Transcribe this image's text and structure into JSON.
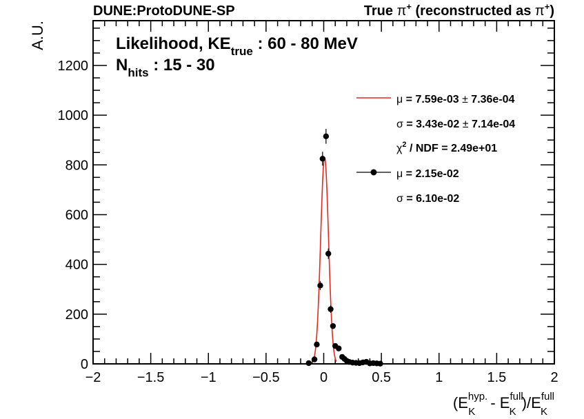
{
  "chart_data": {
    "type": "scatter",
    "header_left": "DUNE:ProtoDUNE-SP",
    "header_right": {
      "prefix": "True ",
      "particle": "π",
      "particle_sup": "+",
      "middle": " (reconstructed as ",
      "particle2": "π",
      "particle2_sup": "+",
      "suffix": ")"
    },
    "ylabel": "A.U.",
    "xlabel": {
      "open": "(E",
      "sup1": "hyp.",
      "sub1": "K",
      "minus": " - E",
      "sup2": "full",
      "sub2": "K",
      "div": ")/E",
      "sup3": "full",
      "sub3": "K"
    },
    "xlim": [
      -2,
      2
    ],
    "ylim": [
      0,
      1380
    ],
    "x_ticks": [
      -2,
      -1.5,
      -1,
      -0.5,
      0,
      0.5,
      1,
      1.5,
      2
    ],
    "x_tick_labels": [
      "−2",
      "−1.5",
      "−1",
      "−0.5",
      "0",
      "0.5",
      "1",
      "1.5",
      "2"
    ],
    "y_ticks": [
      0,
      200,
      400,
      600,
      800,
      1000,
      1200
    ],
    "y_tick_labels": [
      "0",
      "200",
      "400",
      "600",
      "800",
      "1000",
      "1200"
    ],
    "annotation": {
      "line1_a": "Likelihood, KE",
      "line1_sub": "true",
      "line1_b": " : 60 - 80 MeV",
      "line2_a": "N",
      "line2_sub": "hits",
      "line2_b": " : 15 - 30"
    },
    "legend": {
      "fit_mu_sym": "μ",
      "fit_mu_text": " = 7.59e-03 ",
      "fit_mu_pm": "±",
      "fit_mu_err": " 7.36e-04",
      "fit_sigma_sym": "σ",
      "fit_sigma_text": " = 3.43e-02 ",
      "fit_sigma_pm": "±",
      "fit_sigma_err": " 7.14e-04",
      "chi_sym": "χ",
      "chi_sup": "2",
      "chi_text": " / NDF = 2.49e+01",
      "data_mu_sym": "μ",
      "data_mu_text": " = 2.15e-02",
      "data_sigma_sym": "σ",
      "data_sigma_text": " = 6.10e-02"
    },
    "fit": {
      "mu": 0.00759,
      "sigma": 0.0343,
      "amplitude": 830,
      "x_range": [
        -0.1,
        0.11
      ]
    },
    "series": [
      {
        "x": [
          -0.13,
          -0.08,
          -0.06,
          -0.03,
          -0.01,
          0.02,
          0.04,
          0.06,
          0.08,
          0.1,
          0.13,
          0.16,
          0.18,
          0.2,
          0.22,
          0.25,
          0.28,
          0.31,
          0.34,
          0.37,
          0.4,
          0.43,
          0.46,
          0.49
        ],
        "y": [
          3,
          18,
          78,
          315,
          825,
          915,
          443,
          220,
          152,
          72,
          62,
          28,
          20,
          12,
          8,
          5,
          4,
          3,
          6,
          8,
          2,
          3,
          2,
          1
        ],
        "err": [
          2,
          5,
          9,
          18,
          28,
          30,
          21,
          15,
          12,
          8,
          8,
          5,
          4,
          3,
          3,
          2,
          2,
          2,
          2,
          3,
          1,
          2,
          1,
          1
        ]
      }
    ],
    "colors": {
      "fit_line": "#e8261e",
      "marker": "#000000"
    }
  }
}
